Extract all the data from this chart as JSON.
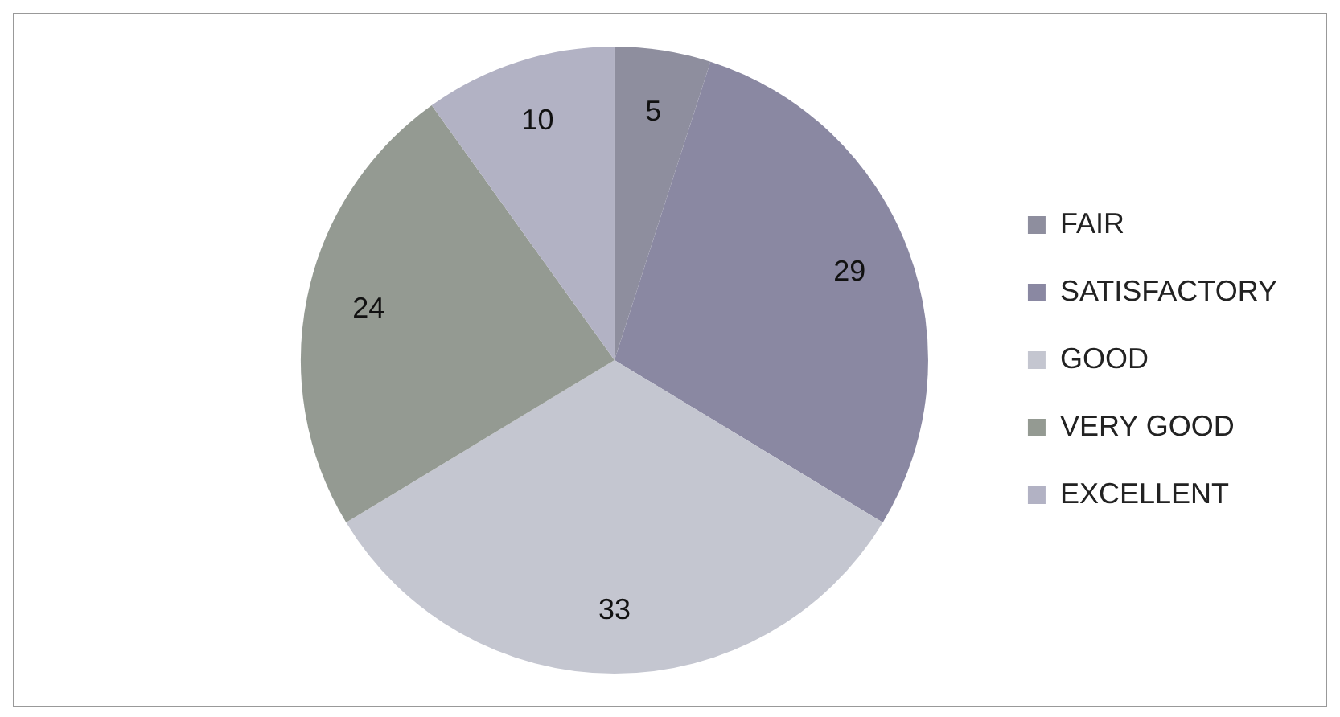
{
  "chart_data": {
    "type": "pie",
    "categories": [
      "FAIR",
      "SATISFACTORY",
      "GOOD",
      "VERY GOOD",
      "EXCELLENT"
    ],
    "values": [
      5,
      29,
      33,
      24,
      10
    ],
    "colors": [
      "#8e8e9e",
      "#8a88a2",
      "#c4c6d0",
      "#949a92",
      "#b2b2c4"
    ],
    "data_labels": true,
    "legend": "right"
  }
}
